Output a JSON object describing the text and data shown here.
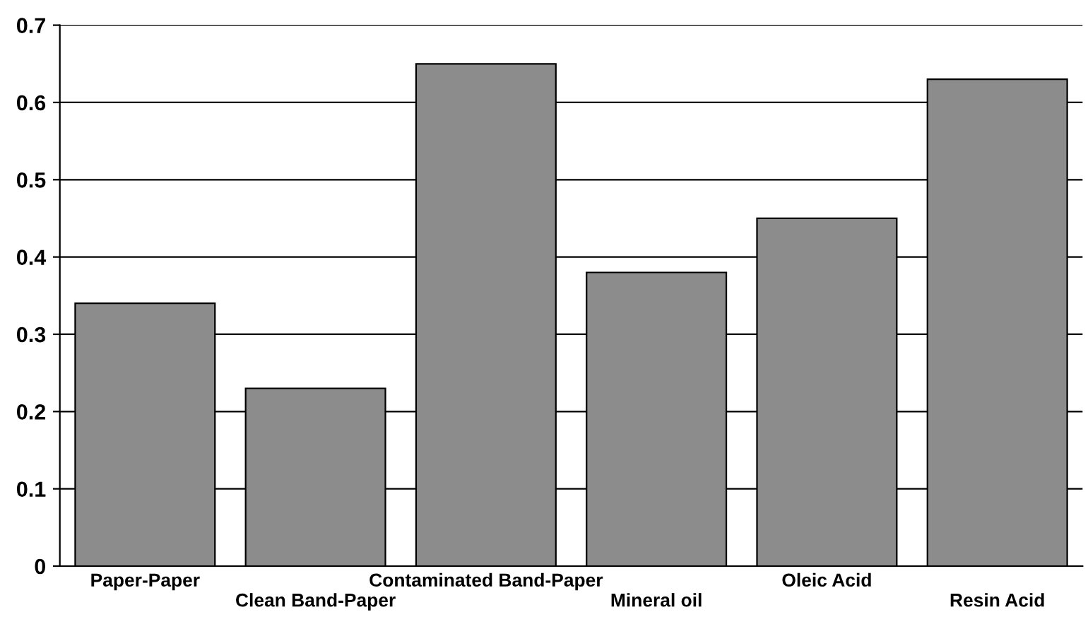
{
  "chart_data": {
    "type": "bar",
    "categories": [
      "Paper-Paper",
      "Clean Band-Paper",
      "Contaminated Band-Paper",
      "Mineral oil",
      "Oleic Acid",
      "Resin Acid"
    ],
    "values": [
      0.34,
      0.23,
      0.65,
      0.38,
      0.45,
      0.63
    ],
    "color": "#8c8c8c",
    "ylim": [
      0,
      0.7
    ],
    "yticks": [
      0,
      {
        "value": 0.1,
        "label": "0.1"
      },
      {
        "value": 0.2,
        "label": "0.2"
      },
      {
        "value": 0.3,
        "label": "0.3"
      },
      {
        "value": 0.4,
        "label": "0.4"
      },
      {
        "value": 0.5,
        "label": "0.5"
      },
      {
        "value": 0.6,
        "label": "0.6"
      },
      {
        "value": 0.7,
        "label": "0.7"
      }
    ],
    "grid": "y"
  }
}
